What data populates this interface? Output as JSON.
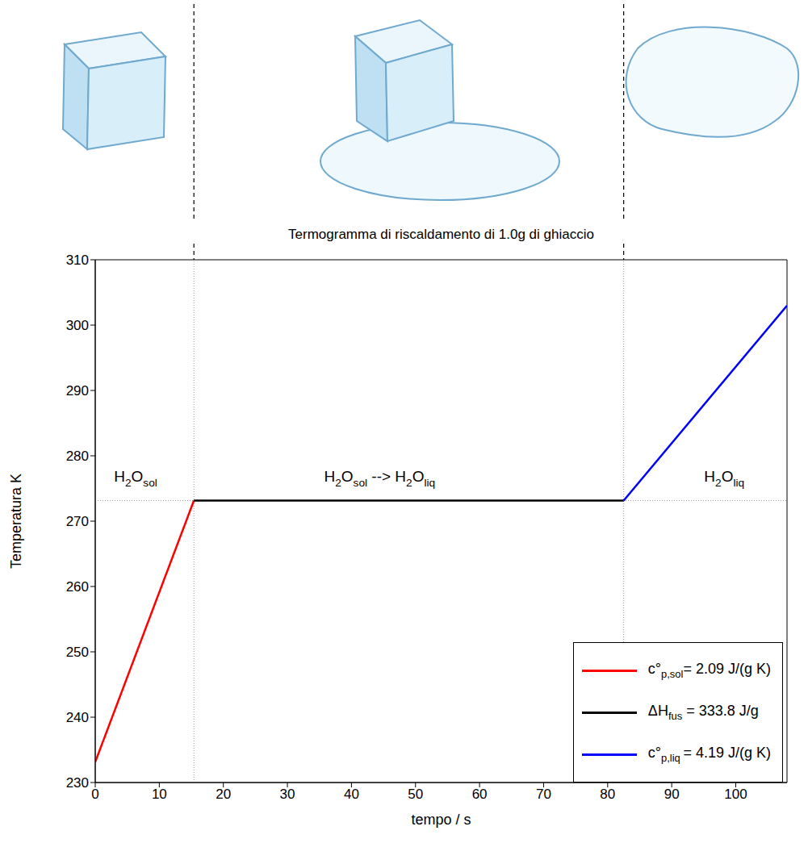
{
  "chart_data": {
    "type": "line",
    "title": "Termogramma di riscaldamento di 1.0g di ghiaccio",
    "x_label": "tempo / s",
    "y_label": "Temperatura K",
    "xlim": [
      0,
      108
    ],
    "xticks": [
      0,
      10,
      20,
      30,
      40,
      50,
      60,
      70,
      80,
      90,
      100
    ],
    "ylim": [
      230,
      310
    ],
    "yticks": [
      230,
      240,
      250,
      260,
      270,
      280,
      290,
      300,
      310
    ],
    "grid": false,
    "legend": "lower right",
    "series": [
      {
        "name": "c°p,sol= 2.09 J/(g K)",
        "color": "#ff0000",
        "x": [
          0,
          15.4
        ],
        "values": [
          233.15,
          273.15
        ]
      },
      {
        "name": "ΔHfus = 333.8 J/g",
        "color": "#000000",
        "x": [
          15.4,
          82.5
        ],
        "values": [
          273.15,
          273.15
        ]
      },
      {
        "name": "c°p,liq = 4.19 J/(g K)",
        "color": "#0000ff",
        "x": [
          82.5,
          108
        ],
        "values": [
          273.15,
          303
        ]
      }
    ],
    "annotations": [
      {
        "text": "H2Osol",
        "x": 6.3,
        "y": 276
      },
      {
        "text": "H2Osol --> H2Oliq",
        "x": 44.4,
        "y": 276
      },
      {
        "text": "H2Oliq",
        "x": 98.2,
        "y": 276
      }
    ]
  }
}
